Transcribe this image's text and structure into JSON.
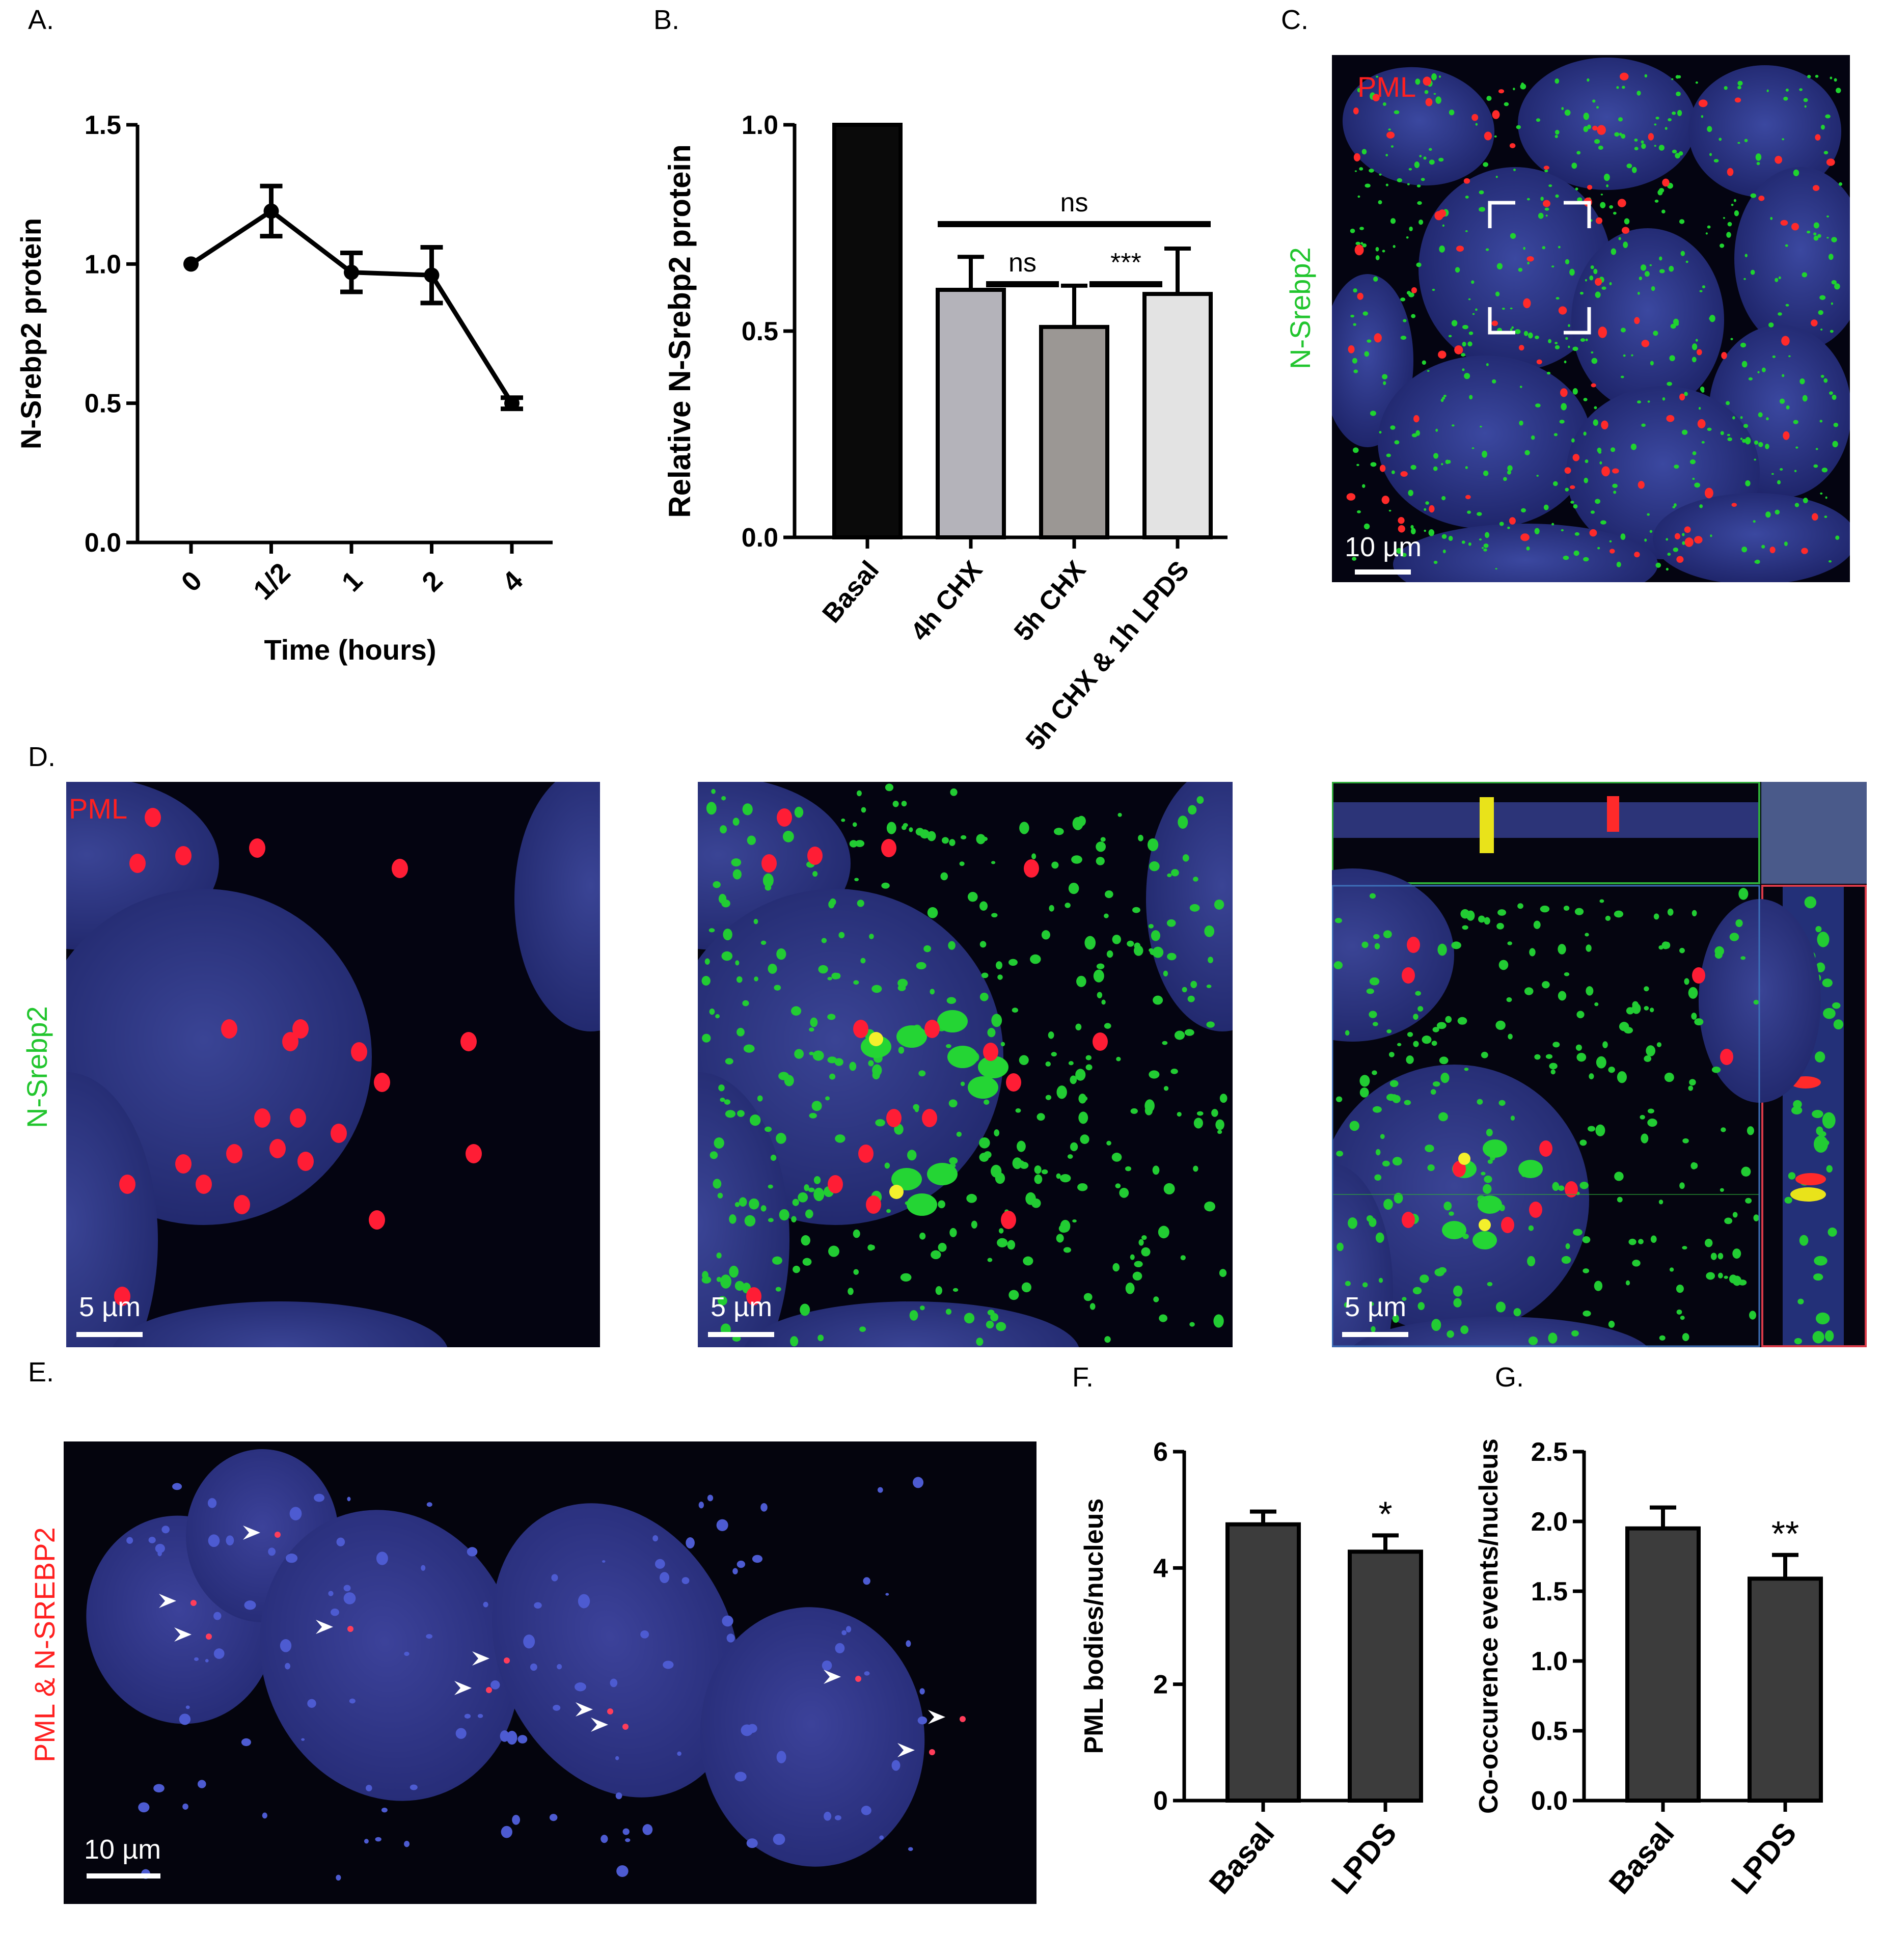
{
  "panels": {
    "a": "A.",
    "b": "B.",
    "c": "C.",
    "d": "D.",
    "e": "E.",
    "f": "F.",
    "g": "G."
  },
  "chart_data": [
    {
      "type": "line",
      "panel": "A.",
      "xlabel": "Time (hours)",
      "ylabel": "N-Srebp2 protein",
      "categories": [
        "0",
        "1/2",
        "1",
        "2",
        "4"
      ],
      "values": [
        1.0,
        1.19,
        0.97,
        0.96,
        0.5
      ],
      "errors": [
        0.0,
        0.09,
        0.07,
        0.1,
        0.02
      ],
      "ylim": [
        0,
        1.5
      ],
      "yticks": [
        "0.0",
        "0.5",
        "1.0",
        "1.5"
      ]
    },
    {
      "type": "bar",
      "panel": "B.",
      "ylabel": "Relative N-Srebp2 protein",
      "categories": [
        "Basal",
        "4h CHX",
        "5h CHX",
        "5h CHX & 1h LPDS"
      ],
      "values": [
        1.0,
        0.6,
        0.51,
        0.59
      ],
      "errors": [
        0.0,
        0.08,
        0.1,
        0.11
      ],
      "bar_colors": [
        "#0a0a0a",
        "#b4b3ba",
        "#9b9794",
        "#e3e3e3"
      ],
      "ylim": [
        0,
        1.0
      ],
      "yticks": [
        "0.0",
        "0.5",
        "1.0"
      ],
      "annotations": [
        "ns",
        "ns",
        "***"
      ]
    },
    {
      "type": "bar",
      "panel": "F.",
      "ylabel": "PML bodies/nucleus",
      "categories": [
        "Basal",
        "LPDS"
      ],
      "values": [
        4.75,
        4.28
      ],
      "errors": [
        0.22,
        0.28
      ],
      "ylim": [
        0,
        6
      ],
      "yticks": [
        "0",
        "2",
        "4",
        "6"
      ],
      "annotations": [
        "*"
      ]
    },
    {
      "type": "bar",
      "panel": "G.",
      "ylabel": "Co-occurence events/nucleus",
      "categories": [
        "Basal",
        "LPDS"
      ],
      "values": [
        1.95,
        1.59
      ],
      "errors": [
        0.15,
        0.17
      ],
      "ylim": [
        0,
        2.5
      ],
      "yticks": [
        "0.0",
        "0.5",
        "1.0",
        "1.5",
        "2.0",
        "2.5"
      ],
      "annotations": [
        "**"
      ]
    }
  ],
  "images": {
    "c_pml": "PML",
    "c_srebp": "N-Srebp2",
    "c_scale": "10 µm",
    "d_pml": "PML",
    "d_srebp": "N-Srebp2",
    "d_scale1": "5 µm",
    "d_scale2": "5 µm",
    "d_scale3": "5 µm",
    "e_label": "PML & N-SREBP2",
    "e_scale": "10 µm"
  },
  "colors": {
    "red": "#ff2020",
    "green": "#22c52e",
    "blue_nucleus": "#2f3a8a",
    "dark_bar": "#3c3c3c"
  }
}
